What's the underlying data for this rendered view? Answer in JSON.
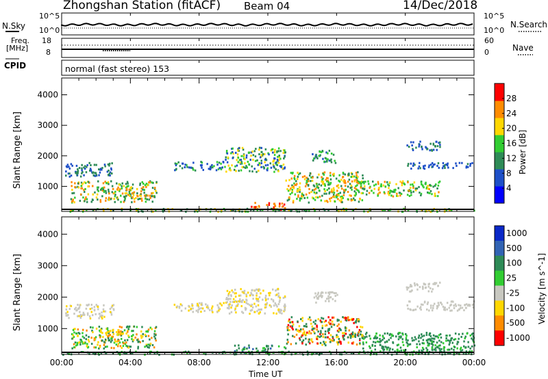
{
  "header": {
    "station": "Zhongshan Station (fitACF)",
    "beam": "Beam 04",
    "date": "14/Dec/2018"
  },
  "nsky_panel": {
    "label": "N.Sky",
    "right_label": "N.Search",
    "y_ticks": [
      "10^5",
      "10^0"
    ]
  },
  "freq_panel": {
    "label_line1": "Freq.",
    "label_line2": "[MHz]",
    "left_ticks": [
      "18",
      "8"
    ],
    "right_ticks": [
      "60",
      "0"
    ],
    "right_label": "Nave"
  },
  "cpid": {
    "label": "CPID",
    "text": "normal (fast stereo) 153"
  },
  "chart_data": [
    {
      "type": "heatmap",
      "title": "",
      "ylabel": "Slant Range [km]",
      "xlabel": "",
      "ylim": [
        180,
        4550
      ],
      "y_ticks": [
        "4000",
        "3000",
        "2000",
        "1000"
      ],
      "y_tick_values": [
        4000,
        3000,
        2000,
        1000
      ],
      "colorbar_label": "Power [dB]",
      "colorbar_ticks": [
        "28",
        "24",
        "20",
        "16",
        "12",
        "8",
        "4"
      ],
      "colorbar_range": [
        0,
        32
      ],
      "colorbar_colors": [
        "#0000ff",
        "#1e50c8",
        "#2e8b57",
        "#32cd32",
        "#ffd700",
        "#ff8c00",
        "#ff0000"
      ]
    },
    {
      "type": "heatmap",
      "title": "",
      "ylabel": "Slant Range [km]",
      "xlabel": "Time UT",
      "ylim": [
        180,
        4550
      ],
      "y_ticks": [
        "4000",
        "3000",
        "2000",
        "1000"
      ],
      "y_tick_values": [
        4000,
        3000,
        2000,
        1000
      ],
      "x_ticks": [
        "00:00",
        "04:00",
        "08:00",
        "12:00",
        "16:00",
        "20:00",
        "00:00"
      ],
      "colorbar_label": "Velocity [m s^-1]",
      "colorbar_ticks": [
        "1000",
        "500",
        "100",
        "25",
        "-25",
        "-100",
        "-500",
        "-1000"
      ],
      "colorbar_colors": [
        "#0a28c8",
        "#3264b4",
        "#2e8b57",
        "#32cd32",
        "#c8c8c0",
        "#ffd700",
        "#ff8c00",
        "#ff0000"
      ]
    }
  ]
}
